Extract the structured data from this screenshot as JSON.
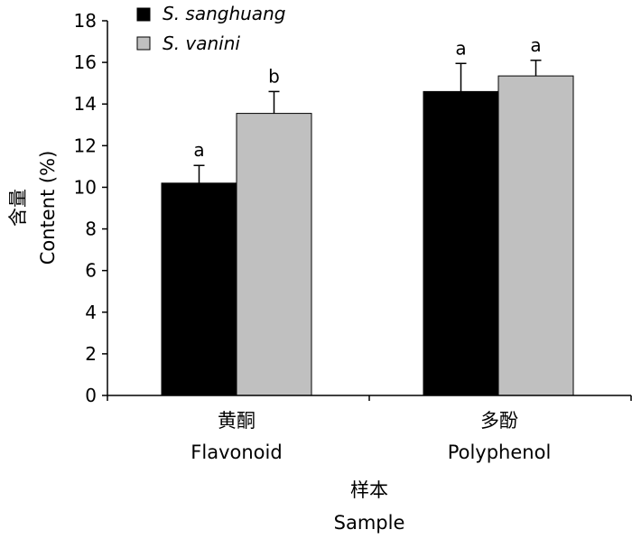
{
  "chart_data": {
    "type": "bar",
    "categories": [
      "Flavonoid",
      "Polyphenol"
    ],
    "categories_zh": [
      "黄酮",
      "多酚"
    ],
    "series": [
      {
        "name": "S. sanghuang",
        "color": "#000000",
        "values": [
          10.2,
          14.6
        ],
        "errors": [
          0.85,
          1.35
        ],
        "significance": [
          "a",
          "a"
        ]
      },
      {
        "name": "S. vanini",
        "color": "#c0c0c0",
        "values": [
          13.55,
          15.35
        ],
        "errors": [
          1.05,
          0.75
        ],
        "significance": [
          "b",
          "a"
        ]
      }
    ],
    "ylabel": "Content (%)",
    "ylabel_zh": "含量",
    "xlabel": "Sample",
    "xlabel_zh": "样本",
    "ylim": [
      0,
      18
    ],
    "yticks": [
      0,
      2,
      4,
      6,
      8,
      10,
      12,
      14,
      16,
      18
    ],
    "legend_position": "top-left",
    "grid": false
  }
}
